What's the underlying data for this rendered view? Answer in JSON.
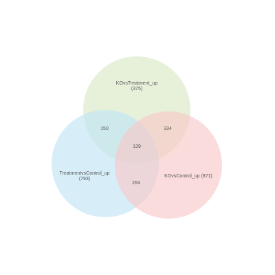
{
  "venn": {
    "sets": [
      {
        "id": "top",
        "name": "KOvsTreatment_up",
        "count": "(375)",
        "color": "#d9e8c3"
      },
      {
        "id": "left",
        "name": "TreatmentvsControl_up",
        "count": "(793)",
        "color": "#bfe4f5"
      },
      {
        "id": "right",
        "name": "KOvsControl_up (871)",
        "count": "",
        "color": "#f9c6c6"
      }
    ],
    "intersections": {
      "top_left": "150",
      "top_right": "334",
      "all": "139",
      "left_right": "264"
    }
  }
}
